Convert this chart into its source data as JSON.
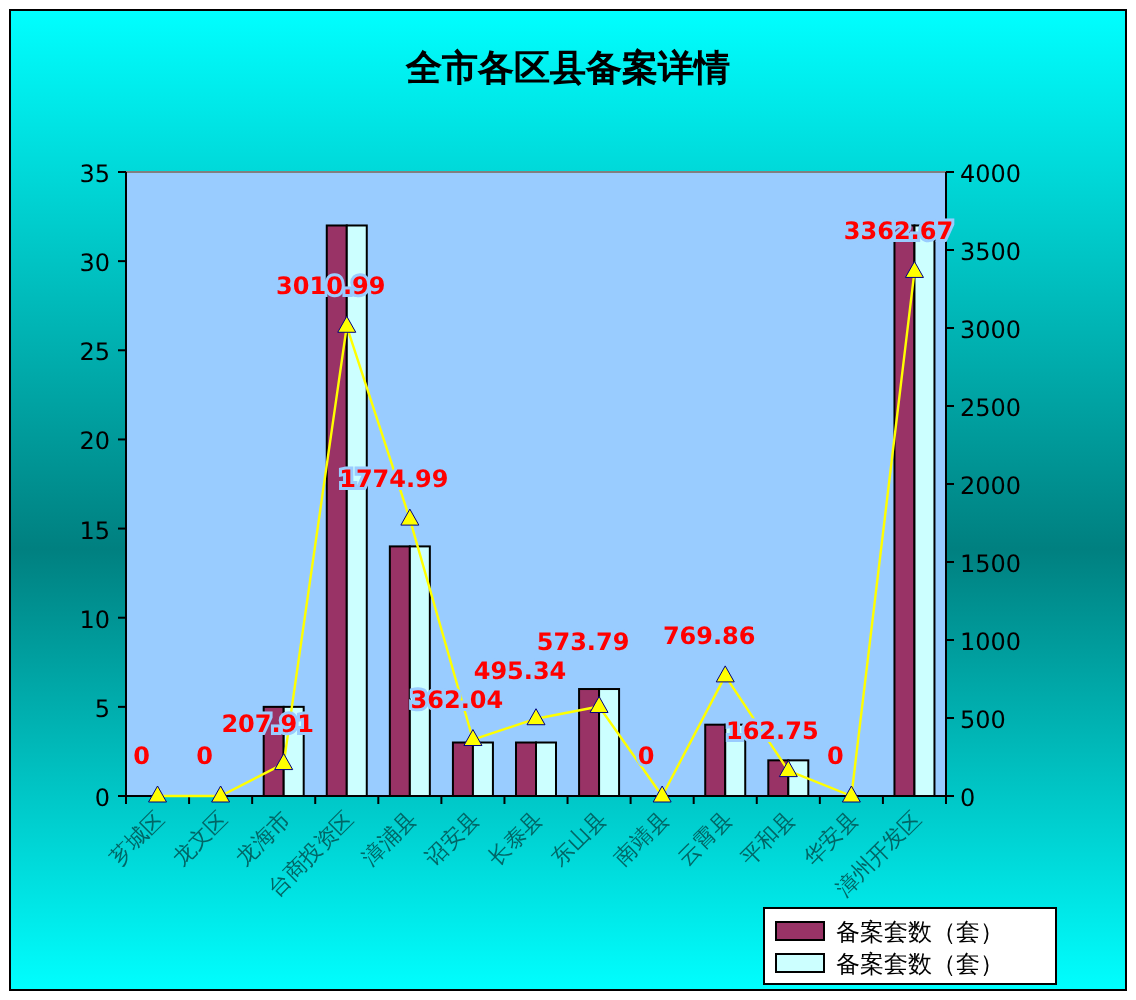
{
  "chart_data": {
    "type": "bar",
    "title": "全市各区县备案详情",
    "categories": [
      "芗城区",
      "龙文区",
      "龙海市",
      "台商投资区",
      "漳浦县",
      "诏安县",
      "长泰县",
      "东山县",
      "南靖县",
      "云霄县",
      "平和县",
      "华安县",
      "漳州开发区"
    ],
    "series": [
      {
        "name": "备案套数（套）",
        "color": "#993366",
        "values": [
          0,
          0,
          5,
          32,
          14,
          3,
          3,
          6,
          0,
          4,
          2,
          0,
          32
        ]
      },
      {
        "name": "备案套数（套）",
        "color": "#ccffff",
        "values": [
          0,
          0,
          5,
          32,
          14,
          3,
          3,
          6,
          0,
          4,
          2,
          0,
          32
        ]
      },
      {
        "type": "line",
        "axis": "y2",
        "color": "#ffff00",
        "marker": "triangle",
        "values": [
          0,
          0,
          207.91,
          3010.99,
          1774.99,
          362.04,
          495.34,
          573.79,
          0,
          769.86,
          162.75,
          0,
          3362.67
        ],
        "value_labels": [
          "0",
          "0",
          "207.91",
          "3010.99",
          "1774.99",
          "362.04",
          "495.34",
          "573.79",
          "0",
          "769.86",
          "162.75",
          "0",
          "3362.67"
        ]
      }
    ],
    "ylim": [
      0,
      35
    ],
    "yticks": [
      0,
      5,
      10,
      15,
      20,
      25,
      30,
      35
    ],
    "y2lim": [
      0,
      4000
    ],
    "y2ticks": [
      0,
      500,
      1000,
      1500,
      2000,
      2500,
      3000,
      3500,
      4000
    ],
    "grid": false,
    "legend": "bottom right"
  }
}
